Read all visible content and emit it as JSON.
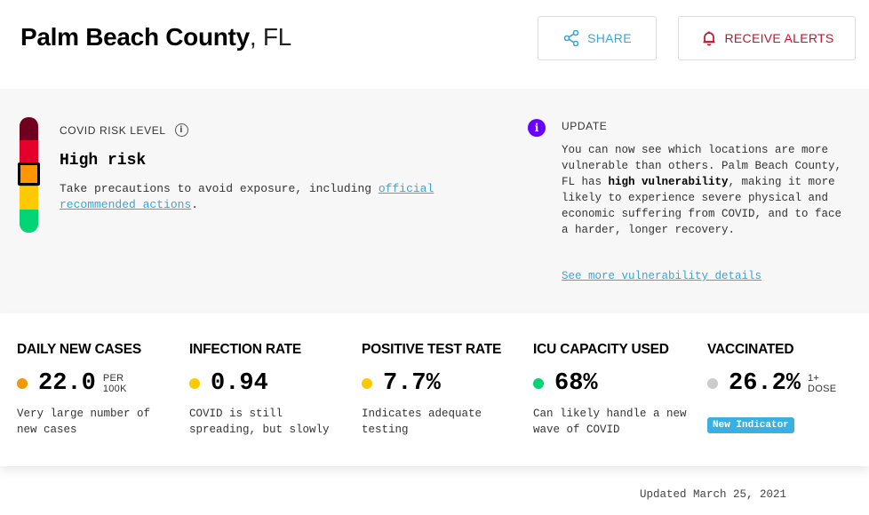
{
  "header": {
    "county": "Palm Beach County",
    "state": ", FL",
    "share_label": "SHARE",
    "alerts_label": "RECEIVE ALERTS",
    "share_icon": "share-icon",
    "alerts_icon": "bell-icon"
  },
  "risk": {
    "label": "COVID RISK LEVEL",
    "level": "High risk",
    "desc_prefix": "Take precautions to avoid exposure, including ",
    "desc_link": "official recommended actions",
    "desc_suffix": ".",
    "level_index": 3,
    "levels_total": 5,
    "colors": [
      "#6f0020",
      "#e3002b",
      "#ff9600",
      "#ffc900",
      "#00d474"
    ]
  },
  "update": {
    "label": "UPDATE",
    "text_1": "You can now see which locations are more vulnerable than others. Palm Beach County, FL has ",
    "text_bold": "high vulnerability",
    "text_2": ", making it more likely to experience severe physical and economic suffering from COVID, and to face a harder, longer recovery.",
    "link": "See more vulnerability details",
    "accent": "#6a00ff"
  },
  "metrics": [
    {
      "title": "DAILY NEW CASES",
      "value": "22.0",
      "unit_1": "PER",
      "unit_2": "100K",
      "color": "#f09a00",
      "desc": "Very large number of new cases"
    },
    {
      "title": "INFECTION RATE",
      "value": "0.94",
      "unit_1": "",
      "unit_2": "",
      "color": "#ffc900",
      "desc": "COVID is still spreading, but slowly"
    },
    {
      "title": "POSITIVE TEST RATE",
      "value": "7.7%",
      "unit_1": "",
      "unit_2": "",
      "color": "#ffc900",
      "desc": "Indicates adequate testing"
    },
    {
      "title": "ICU CAPACITY USED",
      "value": "68%",
      "unit_1": "",
      "unit_2": "",
      "color": "#00d474",
      "desc": "Can likely handle a new wave of COVID"
    },
    {
      "title": "VACCINATED",
      "value": "26.2%",
      "unit_1": "1+",
      "unit_2": "DOSE",
      "color": "#cccccc",
      "badge": "New Indicator"
    }
  ],
  "footer": {
    "updated": "Updated March 25, 2021"
  }
}
